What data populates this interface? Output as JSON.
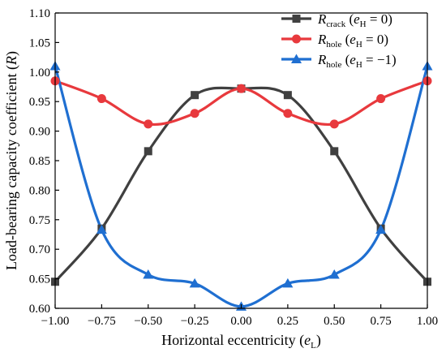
{
  "chart_data": {
    "type": "line",
    "title": "",
    "xlabel": {
      "main": "Horizontal eccentricity (",
      "var": "e",
      "sub": "L",
      "end": ")"
    },
    "ylabel": {
      "main": "Load-bearing capacity coefficient (",
      "var": "R",
      "end": ")"
    },
    "xlim": [
      -1.0,
      1.0
    ],
    "ylim": [
      0.6,
      1.1
    ],
    "xticks": [
      "-1.00",
      "-0.75",
      "-0.50",
      "-0.25",
      "0.00",
      "0.25",
      "0.50",
      "0.75",
      "1.00"
    ],
    "yticks": [
      "0.60",
      "0.65",
      "0.70",
      "0.75",
      "0.80",
      "0.85",
      "0.90",
      "0.95",
      "1.00",
      "1.05",
      "1.10"
    ],
    "legend_position": "top-right",
    "grid": false,
    "x": [
      -1.0,
      -0.75,
      -0.5,
      -0.25,
      0.0,
      0.25,
      0.5,
      0.75,
      1.0
    ],
    "series": [
      {
        "name": "R_crack (e_H = 0)",
        "legend": {
          "var": "R",
          "sub": "crack",
          "cond_pre": " (",
          "cond_var": "e",
          "cond_sub": "H",
          "cond_post": " = 0)"
        },
        "marker": "square",
        "color": "#404040",
        "values": [
          0.645,
          0.735,
          0.866,
          0.961,
          0.972,
          0.961,
          0.866,
          0.735,
          0.645
        ]
      },
      {
        "name": "R_hole (e_H = 0)",
        "legend": {
          "var": "R",
          "sub": "hole",
          "cond_pre": " (",
          "cond_var": "e",
          "cond_sub": "H",
          "cond_post": " = 0)"
        },
        "marker": "circle",
        "color": "#e8393d",
        "values": [
          0.985,
          0.955,
          0.912,
          0.93,
          0.972,
          0.93,
          0.912,
          0.955,
          0.985
        ]
      },
      {
        "name": "R_hole (e_H = −1)",
        "legend": {
          "var": "R",
          "sub": "hole",
          "cond_pre": " (",
          "cond_var": "e",
          "cond_sub": "H",
          "cond_post": " = −1)"
        },
        "marker": "triangle",
        "color": "#1f6fd1",
        "values": [
          1.01,
          0.733,
          0.657,
          0.642,
          0.603,
          0.642,
          0.657,
          0.733,
          1.01
        ]
      }
    ]
  }
}
